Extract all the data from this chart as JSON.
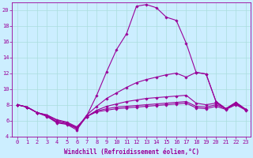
{
  "xlabel": "Windchill (Refroidissement éolien,°C)",
  "background_color": "#cceeff",
  "grid_color": "#aadddd",
  "line_color": "#990099",
  "x": [
    0,
    1,
    2,
    3,
    4,
    5,
    6,
    7,
    8,
    9,
    10,
    11,
    12,
    13,
    14,
    15,
    16,
    17,
    18,
    19,
    20,
    21,
    22,
    23
  ],
  "lines": [
    [
      8.0,
      7.7,
      7.0,
      6.5,
      5.7,
      5.5,
      4.8,
      6.6,
      9.2,
      12.2,
      15.0,
      17.0,
      20.5,
      20.7,
      20.3,
      19.1,
      18.7,
      15.8,
      12.1,
      11.9,
      8.4,
      7.5,
      8.3,
      7.4
    ],
    [
      8.0,
      7.7,
      7.0,
      6.6,
      5.8,
      5.6,
      5.0,
      6.7,
      7.8,
      8.8,
      9.5,
      10.2,
      10.8,
      11.2,
      11.5,
      11.8,
      12.0,
      11.5,
      12.1,
      11.9,
      8.4,
      7.5,
      8.3,
      7.4
    ],
    [
      8.0,
      7.7,
      7.0,
      6.6,
      5.8,
      5.6,
      5.0,
      6.5,
      7.3,
      7.8,
      8.1,
      8.4,
      8.6,
      8.8,
      8.9,
      9.0,
      9.1,
      9.2,
      8.2,
      8.0,
      8.2,
      7.5,
      8.2,
      7.4
    ],
    [
      8.0,
      7.7,
      7.0,
      6.7,
      6.0,
      5.7,
      5.1,
      6.5,
      7.2,
      7.5,
      7.7,
      7.8,
      7.9,
      8.0,
      8.1,
      8.2,
      8.3,
      8.4,
      7.8,
      7.7,
      8.0,
      7.5,
      8.1,
      7.4
    ],
    [
      8.0,
      7.7,
      7.0,
      6.7,
      6.1,
      5.8,
      5.2,
      6.5,
      7.1,
      7.3,
      7.5,
      7.6,
      7.7,
      7.8,
      7.9,
      8.0,
      8.1,
      8.2,
      7.6,
      7.5,
      7.8,
      7.4,
      8.0,
      7.3
    ]
  ],
  "ylim": [
    4,
    21
  ],
  "yticks": [
    4,
    6,
    8,
    10,
    12,
    14,
    16,
    18,
    20
  ],
  "xlim": [
    -0.5,
    23.5
  ],
  "xticks": [
    0,
    1,
    2,
    3,
    4,
    5,
    6,
    7,
    8,
    9,
    10,
    11,
    12,
    13,
    14,
    15,
    16,
    17,
    18,
    19,
    20,
    21,
    22,
    23
  ],
  "marker": "D",
  "markersize": 1.8,
  "linewidth": 0.8,
  "fontsize_xlabel": 5.5,
  "fontsize_tick": 5.0
}
